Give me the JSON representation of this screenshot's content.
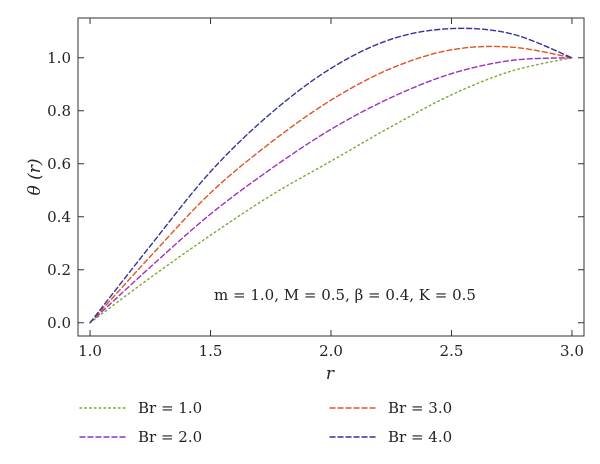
{
  "chart_data": {
    "type": "line",
    "xlabel": "r",
    "ylabel": "θ (r)",
    "xlim": [
      0.95,
      3.05
    ],
    "ylim": [
      -0.05,
      1.15
    ],
    "x_ticks": [
      "1.0",
      "1.5",
      "2.0",
      "2.5",
      "3.0"
    ],
    "y_ticks": [
      "0.0",
      "0.2",
      "0.4",
      "0.6",
      "0.8",
      "1.0"
    ],
    "annotation": "m = 1.0, M = 0.5, β = 0.4, K = 0.5",
    "grid": false,
    "legend_position": "bottom",
    "x": [
      1.0,
      1.25,
      1.5,
      1.75,
      2.0,
      2.25,
      2.5,
      2.75,
      3.0
    ],
    "series": [
      {
        "name": "Br = 1.0",
        "color": "#77aa33",
        "dash": "dotted",
        "values": [
          0.0,
          0.17,
          0.33,
          0.48,
          0.61,
          0.74,
          0.86,
          0.95,
          1.0
        ]
      },
      {
        "name": "Br = 2.0",
        "color": "#9933bb",
        "dash": "dashed",
        "values": [
          0.0,
          0.21,
          0.41,
          0.58,
          0.73,
          0.85,
          0.94,
          0.99,
          1.0
        ]
      },
      {
        "name": "Br = 3.0",
        "color": "#dd5522",
        "dash": "dashed",
        "values": [
          0.0,
          0.25,
          0.49,
          0.68,
          0.84,
          0.96,
          1.03,
          1.04,
          1.0
        ]
      },
      {
        "name": "Br = 4.0",
        "color": "#33339a",
        "dash": "dashed",
        "values": [
          0.0,
          0.29,
          0.57,
          0.79,
          0.96,
          1.07,
          1.11,
          1.09,
          1.0
        ]
      }
    ],
    "legend": [
      {
        "label": "Br = 1.0",
        "series": 0
      },
      {
        "label": "Br = 3.0",
        "series": 2
      },
      {
        "label": "Br = 2.0",
        "series": 1
      },
      {
        "label": "Br = 4.0",
        "series": 3
      }
    ]
  }
}
